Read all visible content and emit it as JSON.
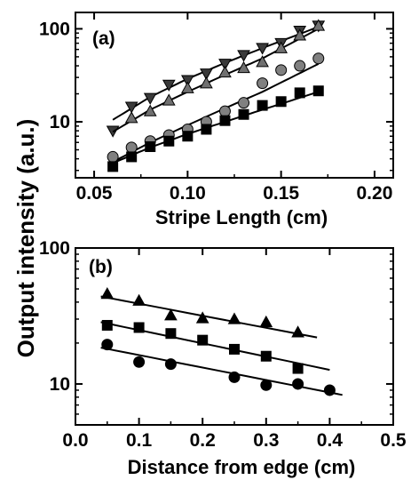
{
  "ylabel": "Output intensity (a.u.)",
  "chart_data": [
    {
      "type": "scatter",
      "panel_label": "(a)",
      "xlabel": "Stripe Length (cm)",
      "ylabel": "",
      "xlim": [
        0.04,
        0.21
      ],
      "ylim": [
        2.5,
        150
      ],
      "yscale": "log",
      "xticks": [
        0.05,
        0.1,
        0.15,
        0.2
      ],
      "xtick_labels": [
        "0.05",
        "0.10",
        "0.15",
        "0.20"
      ],
      "yticks": [
        10,
        100
      ],
      "ytick_labels": [
        "10",
        "100"
      ],
      "grid": false,
      "series": [
        {
          "marker": "triangle-down",
          "color": "#3a3a3a",
          "x": [
            0.06,
            0.07,
            0.08,
            0.09,
            0.1,
            0.11,
            0.12,
            0.13,
            0.14,
            0.15,
            0.16,
            0.17
          ],
          "y": [
            8.0,
            14.5,
            18.0,
            25.0,
            28.0,
            33.0,
            42.0,
            52.0,
            62.0,
            70.0,
            95.0,
            108.0
          ],
          "fit": [
            [
              0.06,
              10.5
            ],
            [
              0.08,
              18.5
            ],
            [
              0.1,
              29.0
            ],
            [
              0.12,
              43.0
            ],
            [
              0.14,
              62.0
            ],
            [
              0.17,
              105.0
            ]
          ]
        },
        {
          "marker": "triangle-up",
          "color": "#707070",
          "x": [
            0.07,
            0.08,
            0.09,
            0.1,
            0.11,
            0.12,
            0.13,
            0.14,
            0.15,
            0.16,
            0.17
          ],
          "y": [
            11.0,
            13.0,
            17.0,
            23.0,
            26.0,
            34.0,
            38.0,
            44.0,
            62.0,
            85.0,
            108.0
          ],
          "fit": [
            [
              0.06,
              7.8
            ],
            [
              0.08,
              13.5
            ],
            [
              0.1,
              21.0
            ],
            [
              0.12,
              32.0
            ],
            [
              0.14,
              48.0
            ],
            [
              0.17,
              100.0
            ]
          ]
        },
        {
          "marker": "circle",
          "color": "#808080",
          "x": [
            0.06,
            0.07,
            0.08,
            0.09,
            0.1,
            0.11,
            0.12,
            0.13,
            0.14,
            0.15,
            0.16,
            0.17
          ],
          "y": [
            4.2,
            5.3,
            6.2,
            7.2,
            8.3,
            10.0,
            13.0,
            16.0,
            26.0,
            36.0,
            40.0,
            48.0
          ],
          "fit": [
            [
              0.06,
              3.7
            ],
            [
              0.08,
              6.0
            ],
            [
              0.1,
              9.2
            ],
            [
              0.12,
              14.0
            ],
            [
              0.14,
              21.0
            ],
            [
              0.17,
              42.0
            ]
          ]
        },
        {
          "marker": "square",
          "color": "#000000",
          "x": [
            0.06,
            0.07,
            0.08,
            0.09,
            0.1,
            0.11,
            0.12,
            0.13,
            0.14,
            0.15,
            0.16,
            0.17
          ],
          "y": [
            3.3,
            4.2,
            5.4,
            6.2,
            7.0,
            8.3,
            10.3,
            12.0,
            15.0,
            16.5,
            20.5,
            21.5
          ],
          "fit": [
            [
              0.06,
              3.6
            ],
            [
              0.08,
              5.3
            ],
            [
              0.1,
              7.4
            ],
            [
              0.12,
              10.0
            ],
            [
              0.14,
              13.5
            ],
            [
              0.17,
              21.0
            ]
          ]
        }
      ]
    },
    {
      "type": "scatter",
      "panel_label": "(b)",
      "xlabel": "Distance from edge (cm)",
      "ylabel": "",
      "xlim": [
        0.0,
        0.5
      ],
      "ylim": [
        5,
        100
      ],
      "yscale": "log",
      "xticks": [
        0.0,
        0.1,
        0.2,
        0.3,
        0.4,
        0.5
      ],
      "xtick_labels": [
        "0.0",
        "0.1",
        "0.2",
        "0.3",
        "0.4",
        "0.5"
      ],
      "yticks": [
        10,
        100
      ],
      "ytick_labels": [
        "10",
        "100"
      ],
      "grid": false,
      "series": [
        {
          "marker": "triangle-up",
          "color": "#000000",
          "x": [
            0.05,
            0.1,
            0.15,
            0.2,
            0.25,
            0.3,
            0.35
          ],
          "y": [
            46.0,
            41.0,
            32.0,
            30.5,
            30.0,
            28.5,
            24.0
          ],
          "fit": [
            [
              0.04,
              44.0
            ],
            [
              0.38,
              22.0
            ]
          ]
        },
        {
          "marker": "square",
          "color": "#000000",
          "x": [
            0.05,
            0.1,
            0.15,
            0.2,
            0.25,
            0.3,
            0.35
          ],
          "y": [
            27.0,
            26.0,
            23.5,
            21.0,
            18.0,
            16.0,
            13.0
          ],
          "fit": [
            [
              0.04,
              28.5
            ],
            [
              0.4,
              12.7
            ]
          ]
        },
        {
          "marker": "circle",
          "color": "#000000",
          "x": [
            0.05,
            0.1,
            0.15,
            0.25,
            0.3,
            0.35,
            0.4
          ],
          "y": [
            19.5,
            14.5,
            14.0,
            11.2,
            9.8,
            10.0,
            9.0
          ],
          "fit": [
            [
              0.04,
              18.5
            ],
            [
              0.42,
              8.3
            ]
          ]
        }
      ]
    }
  ]
}
